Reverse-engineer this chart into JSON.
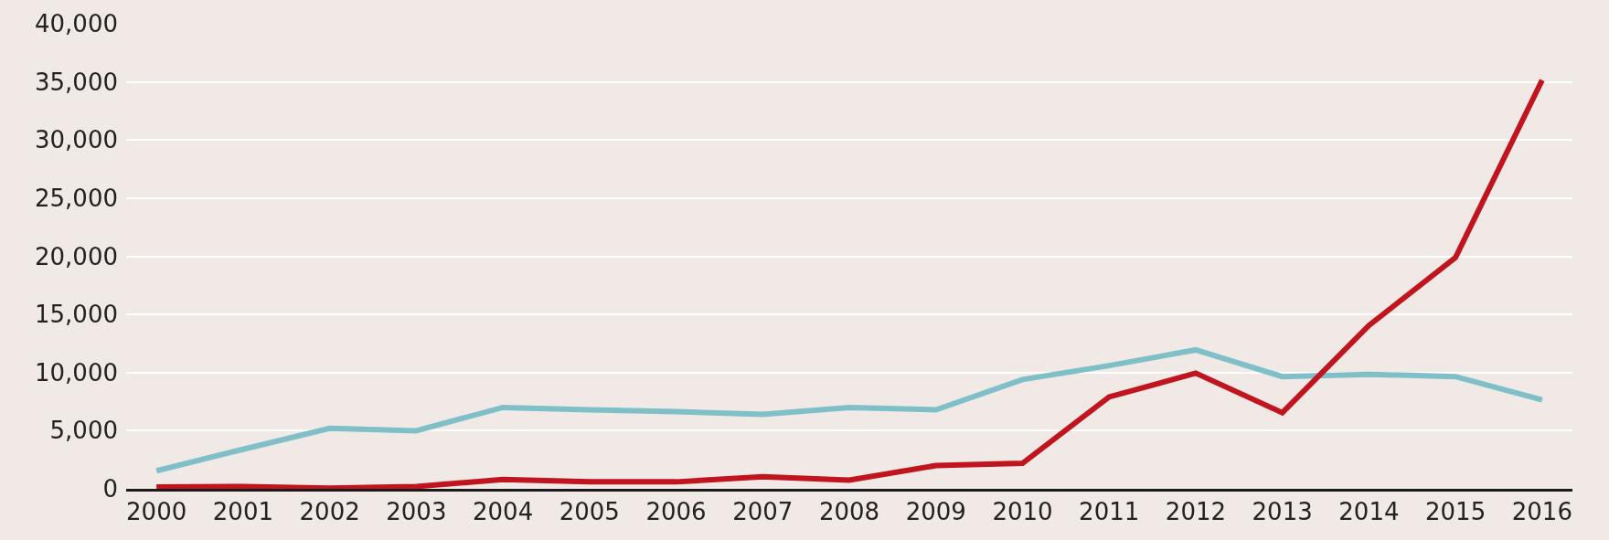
{
  "chart_data": {
    "type": "line",
    "categories": [
      "2000",
      "2001",
      "2002",
      "2003",
      "2004",
      "2005",
      "2006",
      "2007",
      "2008",
      "2009",
      "2010",
      "2011",
      "2012",
      "2013",
      "2014",
      "2015",
      "2016"
    ],
    "series": [
      {
        "color": "#7fbfc8",
        "values": [
          1550,
          3400,
          5200,
          5000,
          7000,
          6800,
          6650,
          6400,
          7000,
          6800,
          9400,
          10600,
          11950,
          9650,
          9850,
          9650,
          7650
        ]
      },
      {
        "color": "#c0141f",
        "values": [
          150,
          200,
          50,
          200,
          800,
          600,
          600,
          1050,
          750,
          2000,
          2200,
          7900,
          9950,
          6550,
          14050,
          19900,
          35150
        ]
      }
    ],
    "ylim": [
      0,
      40000
    ],
    "yticks": [
      {
        "value": 0,
        "label": "0"
      },
      {
        "value": 5000,
        "label": "5,000"
      },
      {
        "value": 10000,
        "label": "10,000"
      },
      {
        "value": 15000,
        "label": "15,000"
      },
      {
        "value": 20000,
        "label": "20,000"
      },
      {
        "value": 25000,
        "label": "25,000"
      },
      {
        "value": 30000,
        "label": "30,000"
      },
      {
        "value": 35000,
        "label": "35,000"
      },
      {
        "value": 40000,
        "label": "40,000"
      }
    ],
    "grid": "y",
    "marker": "none",
    "line_style": "solid"
  }
}
